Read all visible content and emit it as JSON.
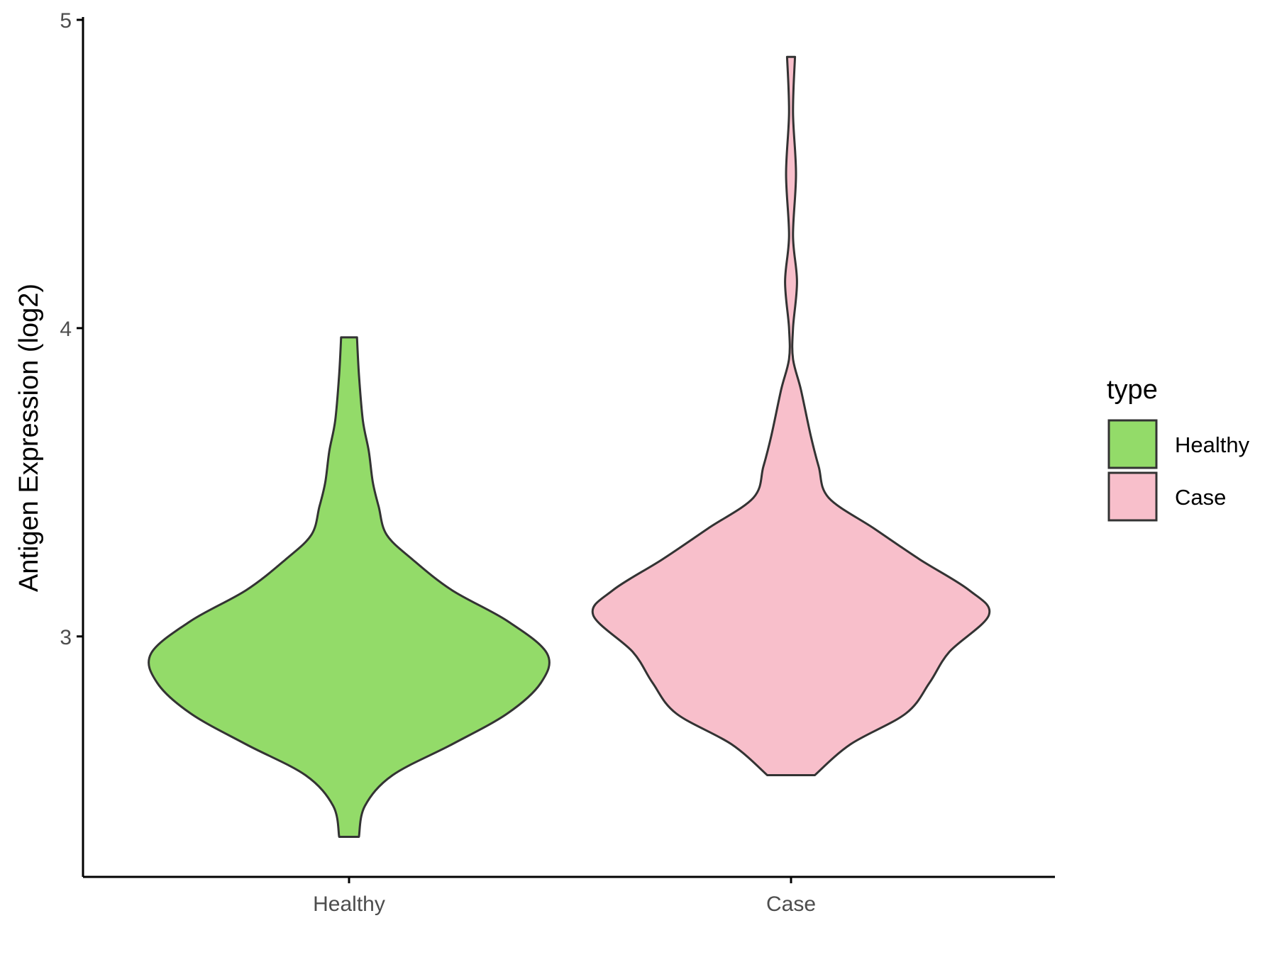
{
  "chart_data": {
    "type": "violin",
    "ylabel": "Antigen Expression (log2)",
    "xlabel": "",
    "categories": [
      "Healthy",
      "Case"
    ],
    "y_ticks": [
      3,
      4,
      5
    ],
    "ylim": [
      2.22,
      5.0
    ],
    "legend": {
      "title": "type",
      "position": "right",
      "entries": [
        {
          "label": "Healthy",
          "color": "#93DB69"
        },
        {
          "label": "Case",
          "color": "#F8BFCB"
        }
      ]
    },
    "series": [
      {
        "category": "Healthy",
        "color": "#93DB69",
        "min": 2.35,
        "max": 3.97,
        "profile": [
          [
            2.35,
            0.05
          ],
          [
            2.45,
            0.08
          ],
          [
            2.55,
            0.22
          ],
          [
            2.65,
            0.52
          ],
          [
            2.75,
            0.8
          ],
          [
            2.85,
            0.97
          ],
          [
            2.945,
            1.0
          ],
          [
            3.05,
            0.8
          ],
          [
            3.15,
            0.52
          ],
          [
            3.25,
            0.32
          ],
          [
            3.33,
            0.19
          ],
          [
            3.42,
            0.15
          ],
          [
            3.5,
            0.12
          ],
          [
            3.6,
            0.1
          ],
          [
            3.7,
            0.07
          ],
          [
            3.85,
            0.05
          ],
          [
            3.97,
            0.04
          ]
        ]
      },
      {
        "category": "Case",
        "color": "#F8BFCB",
        "min": 2.55,
        "max": 4.88,
        "profile": [
          [
            2.55,
            0.12
          ],
          [
            2.65,
            0.3
          ],
          [
            2.75,
            0.58
          ],
          [
            2.85,
            0.7
          ],
          [
            2.95,
            0.8
          ],
          [
            3.07,
            1.0
          ],
          [
            3.15,
            0.9
          ],
          [
            3.25,
            0.65
          ],
          [
            3.35,
            0.42
          ],
          [
            3.45,
            0.19
          ],
          [
            3.55,
            0.14
          ],
          [
            3.65,
            0.1
          ],
          [
            3.8,
            0.05
          ],
          [
            3.9,
            0.01
          ],
          [
            4.0,
            0.01
          ],
          [
            4.15,
            0.03
          ],
          [
            4.3,
            0.01
          ],
          [
            4.5,
            0.025
          ],
          [
            4.7,
            0.01
          ],
          [
            4.88,
            0.02
          ]
        ]
      }
    ]
  }
}
